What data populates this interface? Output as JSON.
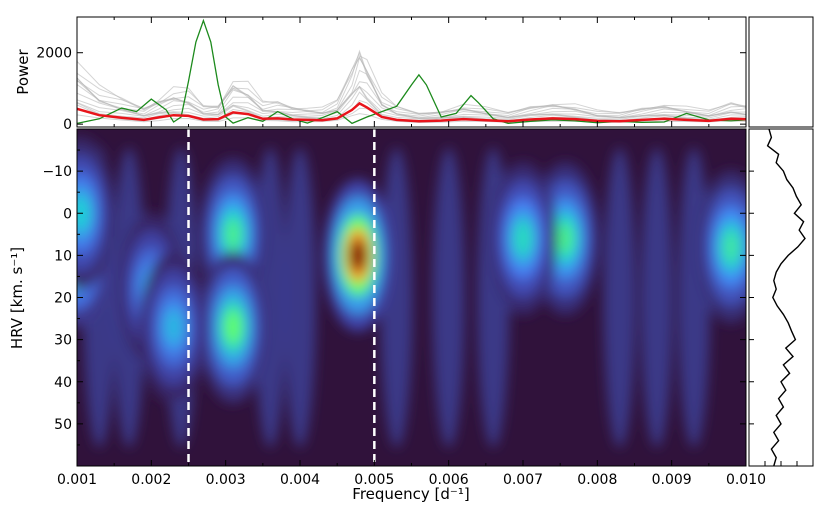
{
  "chart_data": [
    {
      "type": "line",
      "panel": "top",
      "title": "",
      "ylabel": "Power",
      "xlim": [
        0.001,
        0.01
      ],
      "ylim": [
        -80,
        3000
      ],
      "yticks": [
        0,
        2000
      ],
      "ytick_labels": [
        "0",
        "2000"
      ],
      "series": [
        {
          "name": "mean periodogram (red)",
          "color": "#e8141b",
          "x": [
            0.001,
            0.0013,
            0.0016,
            0.0019,
            0.0021,
            0.0023,
            0.0025,
            0.0027,
            0.0029,
            0.0031,
            0.0033,
            0.0035,
            0.0037,
            0.0039,
            0.0041,
            0.0043,
            0.0045,
            0.0047,
            0.0048,
            0.0049,
            0.0051,
            0.0053,
            0.0056,
            0.0059,
            0.0062,
            0.0065,
            0.0068,
            0.0071,
            0.0074,
            0.0077,
            0.008,
            0.0083,
            0.0086,
            0.0089,
            0.0092,
            0.0095,
            0.0098,
            0.01
          ],
          "values": [
            430,
            250,
            180,
            120,
            190,
            250,
            230,
            130,
            140,
            330,
            280,
            150,
            160,
            130,
            120,
            110,
            160,
            400,
            580,
            470,
            200,
            120,
            80,
            100,
            140,
            110,
            80,
            130,
            160,
            140,
            90,
            80,
            120,
            150,
            120,
            90,
            150,
            140
          ]
        },
        {
          "name": "single periodogram (green)",
          "color": "#1c8a1c",
          "x": [
            0.001,
            0.0013,
            0.0016,
            0.0018,
            0.002,
            0.0022,
            0.0023,
            0.0024,
            0.0025,
            0.0026,
            0.0027,
            0.0028,
            0.0029,
            0.003,
            0.0031,
            0.0033,
            0.0035,
            0.0037,
            0.0039,
            0.0041,
            0.0043,
            0.0045,
            0.0047,
            0.0049,
            0.0051,
            0.0053,
            0.0055,
            0.0056,
            0.0057,
            0.0059,
            0.0061,
            0.0063,
            0.0064,
            0.0066,
            0.0068,
            0.0071,
            0.0074,
            0.0077,
            0.008,
            0.0083,
            0.0086,
            0.0089,
            0.0092,
            0.0095,
            0.0098,
            0.01
          ],
          "values": [
            20,
            150,
            450,
            350,
            700,
            400,
            60,
            200,
            1200,
            2300,
            2900,
            2300,
            1100,
            200,
            30,
            180,
            80,
            350,
            150,
            30,
            180,
            350,
            20,
            200,
            350,
            500,
            1100,
            1380,
            1100,
            200,
            300,
            800,
            600,
            150,
            20,
            80,
            120,
            90,
            40,
            80,
            50,
            60,
            300,
            120,
            90,
            120
          ]
        }
      ]
    },
    {
      "type": "heatmap",
      "panel": "main",
      "xlabel": "Frequency [d⁻¹]",
      "ylabel": "HRV [km. s⁻¹]",
      "xlim": [
        0.001,
        0.01
      ],
      "ylim": [
        60,
        -20
      ],
      "xticks": [
        0.001,
        0.002,
        0.003,
        0.004,
        0.005,
        0.006,
        0.007,
        0.008,
        0.009,
        0.01
      ],
      "xtick_labels": [
        "0.001",
        "0.002",
        "0.003",
        "0.004",
        "0.005",
        "0.006",
        "0.007",
        "0.008",
        "0.009",
        "0.010"
      ],
      "yticks": [
        -10,
        0,
        10,
        20,
        30,
        40,
        50
      ],
      "ytick_labels": [
        "−10",
        "0",
        "10",
        "20",
        "30",
        "40",
        "50"
      ],
      "colormap": "turbo",
      "vlines": [
        0.0025,
        0.005
      ],
      "vline_color": "#ffffff",
      "peaks": [
        {
          "freq": 0.00478,
          "hrv": 10,
          "intensity": 1.0
        },
        {
          "freq": 0.0031,
          "hrv": 5,
          "intensity": 0.55
        },
        {
          "freq": 0.0031,
          "hrv": 27,
          "intensity": 0.6
        },
        {
          "freq": 0.001,
          "hrv": 9,
          "intensity": 0.72
        },
        {
          "freq": 0.00105,
          "hrv": 0,
          "intensity": 0.45
        },
        {
          "freq": 0.00757,
          "hrv": 6,
          "intensity": 0.55
        },
        {
          "freq": 0.007,
          "hrv": 6,
          "intensity": 0.48
        },
        {
          "freq": 0.0098,
          "hrv": 8,
          "intensity": 0.52
        },
        {
          "freq": 0.002,
          "hrv": 18,
          "intensity": 0.4
        },
        {
          "freq": 0.0023,
          "hrv": 27,
          "intensity": 0.4
        }
      ]
    },
    {
      "type": "line",
      "panel": "side",
      "title": "",
      "ylabel": "",
      "orientation": "vertical",
      "hrv": [
        -20,
        -18,
        -16,
        -14,
        -12,
        -10,
        -8,
        -6,
        -4,
        -2,
        0,
        2,
        4,
        6,
        8,
        10,
        12,
        14,
        16,
        18,
        20,
        22,
        24,
        26,
        28,
        30,
        32,
        34,
        36,
        38,
        40,
        42,
        44,
        46,
        48,
        50,
        52,
        54,
        56,
        58,
        60
      ],
      "values": [
        0.25,
        0.3,
        0.22,
        0.45,
        0.4,
        0.55,
        0.62,
        0.75,
        0.82,
        0.92,
        0.78,
        0.97,
        0.88,
        1.0,
        0.85,
        0.65,
        0.5,
        0.4,
        0.35,
        0.4,
        0.33,
        0.42,
        0.55,
        0.65,
        0.72,
        0.8,
        0.6,
        0.75,
        0.55,
        0.68,
        0.5,
        0.6,
        0.45,
        0.55,
        0.4,
        0.5,
        0.35,
        0.45,
        0.3,
        0.4,
        0.35
      ]
    }
  ]
}
